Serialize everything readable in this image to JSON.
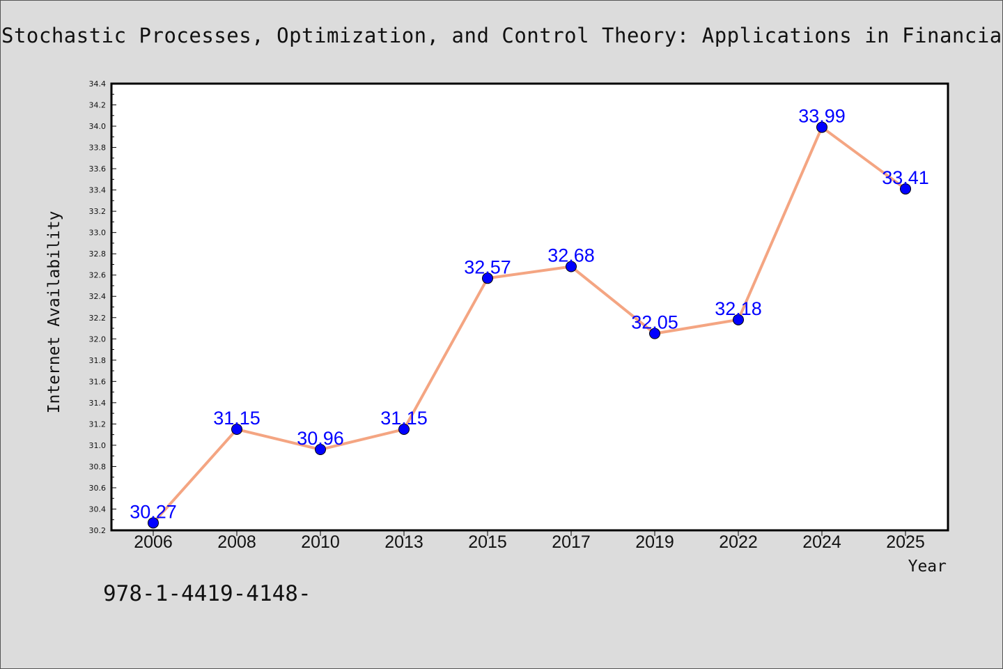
{
  "colors": {
    "background": "#dcdcdc",
    "plot_area": "#ffffff",
    "line": "#f4a582",
    "marker": "#0000ff",
    "data_label": "#0000ff"
  },
  "footer": {
    "isbn": "978-1-4419-4148-"
  },
  "chart_data": {
    "type": "line",
    "title": "Stochastic Processes, Optimization, and Control Theory: Applications in Financia",
    "xlabel": "Year",
    "ylabel": "Internet Availability",
    "categories": [
      "2006",
      "2008",
      "2010",
      "2013",
      "2015",
      "2017",
      "2019",
      "2022",
      "2024",
      "2025"
    ],
    "series": [
      {
        "values": [
          30.27,
          31.15,
          30.96,
          31.15,
          32.57,
          32.68,
          32.05,
          32.18,
          33.99,
          33.41
        ]
      }
    ],
    "data_labels": [
      "30.27",
      "31.15",
      "30.96",
      "31.15",
      "32.57",
      "32.68",
      "32.05",
      "32.18",
      "33.99",
      "33.41"
    ],
    "ylim": [
      30.2,
      34.4
    ],
    "yticks": [
      "30.2",
      "30.4",
      "30.6",
      "30.8",
      "31.0",
      "31.2",
      "31.4",
      "31.6",
      "31.8",
      "32.0",
      "32.2",
      "32.4",
      "32.6",
      "32.8",
      "33.0",
      "33.2",
      "33.4",
      "33.6",
      "33.8",
      "34.0",
      "34.2",
      "34.4"
    ],
    "grid": false,
    "legend": "none"
  }
}
